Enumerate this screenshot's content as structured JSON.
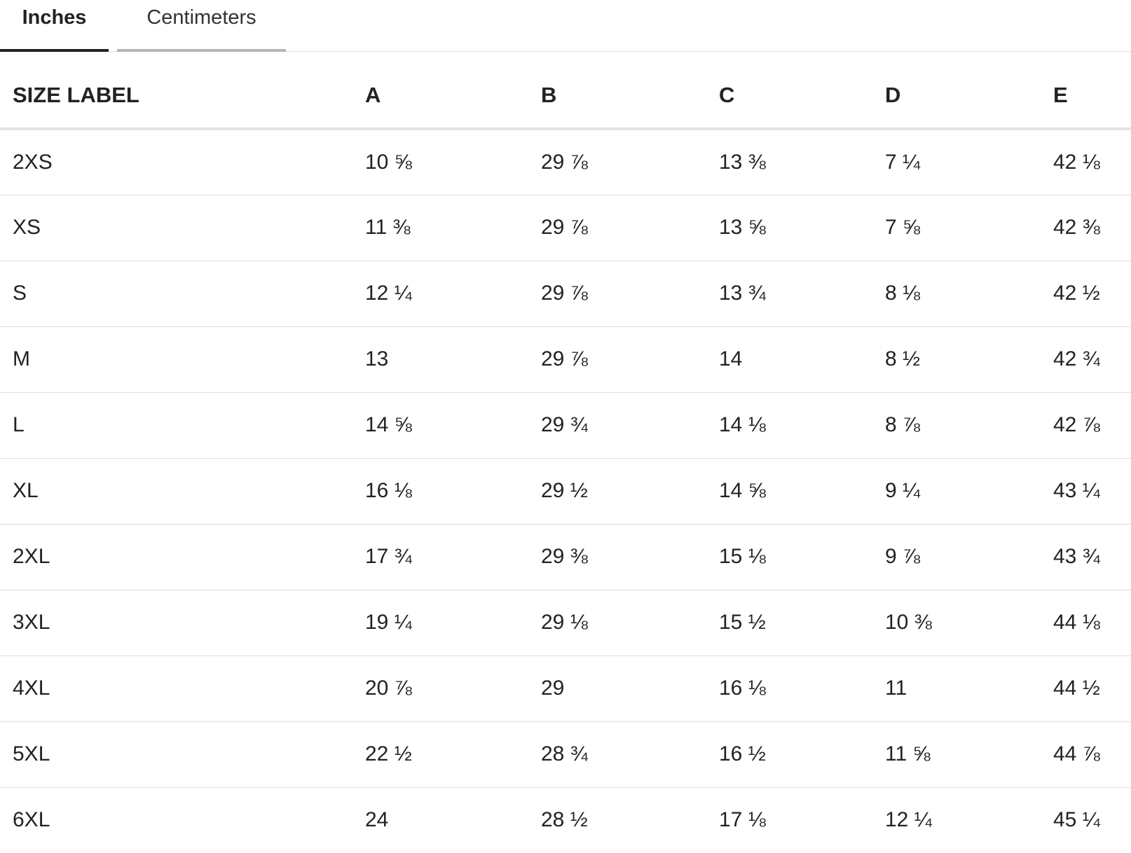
{
  "tabs": [
    {
      "label": "Inches",
      "active": true
    },
    {
      "label": "Centimeters",
      "active": false
    }
  ],
  "colors": {
    "active_tab_underline": "#222222",
    "inactive_tab_underline": "#b5b5b5",
    "text": "#222222",
    "row_divider": "#dedede"
  },
  "table": {
    "headers": [
      "SIZE LABEL",
      "A",
      "B",
      "C",
      "D",
      "E"
    ],
    "rows": [
      [
        "2XS",
        "10 ⅝",
        "29 ⅞",
        "13 ⅜",
        "7 ¼",
        "42 ⅛"
      ],
      [
        "XS",
        "11 ⅜",
        "29 ⅞",
        "13 ⅝",
        "7 ⅝",
        "42 ⅜"
      ],
      [
        "S",
        "12 ¼",
        "29 ⅞",
        "13 ¾",
        "8 ⅛",
        "42 ½"
      ],
      [
        "M",
        "13",
        "29 ⅞",
        "14",
        "8 ½",
        "42 ¾"
      ],
      [
        "L",
        "14 ⅝",
        "29 ¾",
        "14 ⅛",
        "8 ⅞",
        "42 ⅞"
      ],
      [
        "XL",
        "16 ⅛",
        "29 ½",
        "14 ⅝",
        "9 ¼",
        "43 ¼"
      ],
      [
        "2XL",
        "17 ¾",
        "29 ⅜",
        "15 ⅛",
        "9 ⅞",
        "43 ¾"
      ],
      [
        "3XL",
        "19 ¼",
        "29 ⅛",
        "15 ½",
        "10 ⅜",
        "44 ⅛"
      ],
      [
        "4XL",
        "20 ⅞",
        "29",
        "16 ⅛",
        "11",
        "44 ½"
      ],
      [
        "5XL",
        "22 ½",
        "28 ¾",
        "16 ½",
        "11 ⅝",
        "44 ⅞"
      ],
      [
        "6XL",
        "24",
        "28 ½",
        "17 ⅛",
        "12 ¼",
        "45 ¼"
      ]
    ]
  }
}
